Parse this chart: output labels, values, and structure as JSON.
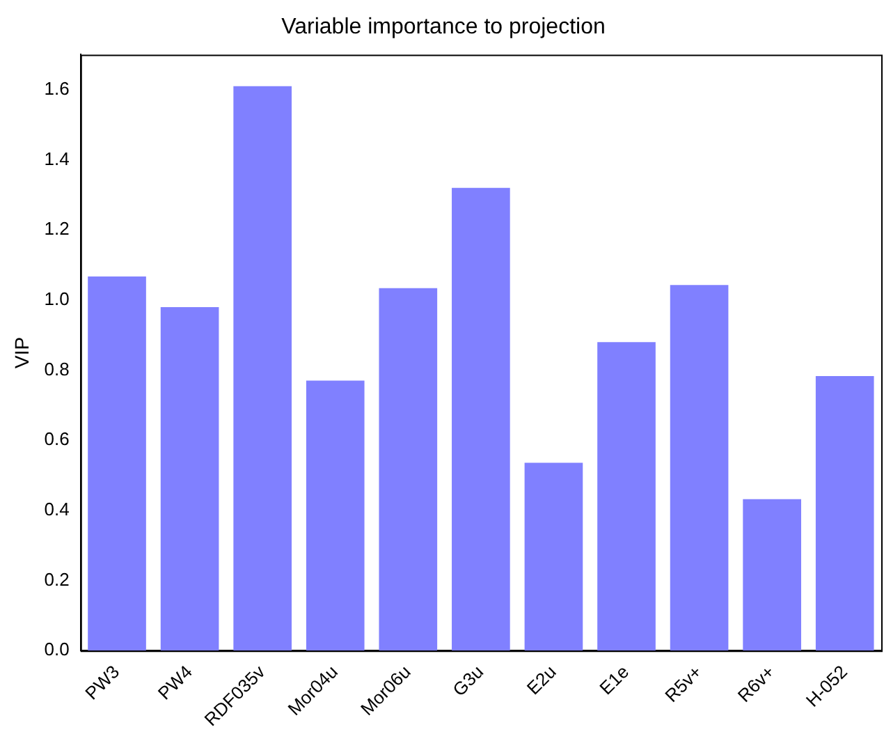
{
  "chart_data": {
    "type": "bar",
    "title": "Variable importance to projection",
    "ylabel": "VIP",
    "categories": [
      "PW3",
      "PW4",
      "RDF035v",
      "Mor04u",
      "Mor06u",
      "G3u",
      "E2u",
      "E1e",
      "R5v+",
      "R6v+",
      "H-052"
    ],
    "values": [
      1.067,
      0.98,
      1.61,
      0.77,
      1.034,
      1.32,
      0.536,
      0.88,
      1.043,
      0.432,
      0.783
    ],
    "color": "#8080ff",
    "ylim": [
      0,
      1.7
    ],
    "yticks": [
      {
        "value": 0,
        "label": "0.0"
      },
      0.2,
      0.4,
      0.6,
      0.8,
      {
        "value": 1,
        "label": "1.0"
      },
      1.2,
      1.4,
      1.6
    ],
    "grid": false,
    "legend": false
  }
}
